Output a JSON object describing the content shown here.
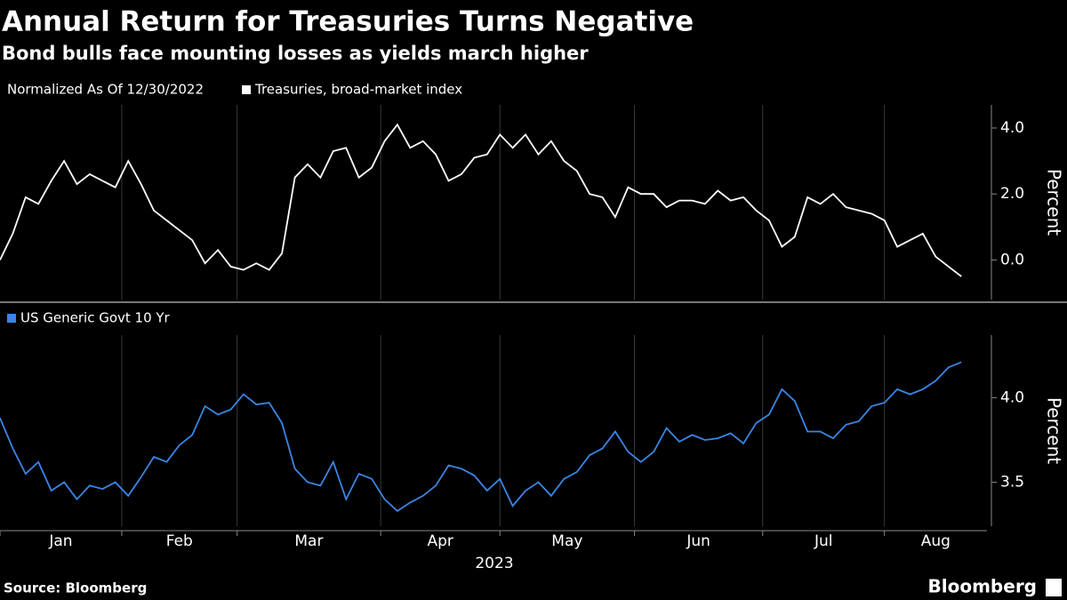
{
  "chart_data": [
    {
      "type": "line",
      "title": "Annual Return for Treasuries Turns Negative",
      "subtitle": "Bond bulls face mounting losses as yields march higher",
      "note": "Normalized As Of 12/30/2022",
      "ylabel": "Percent",
      "ylim": [
        -1.2,
        4.7
      ],
      "yticks": [
        {
          "value": 0,
          "label": "0.0"
        },
        {
          "value": 2,
          "label": "2.0"
        },
        {
          "value": 4,
          "label": "4.0"
        }
      ],
      "xlim": [
        0,
        77
      ],
      "series": [
        {
          "name": "Treasuries, broad-market index",
          "color": "#ffffff",
          "values": [
            0.0,
            0.8,
            1.9,
            1.7,
            2.4,
            3.0,
            2.3,
            2.6,
            2.4,
            2.2,
            3.0,
            2.3,
            1.5,
            1.2,
            0.9,
            0.6,
            -0.1,
            0.3,
            -0.2,
            -0.3,
            -0.1,
            -0.3,
            0.2,
            2.5,
            2.9,
            2.5,
            3.3,
            3.4,
            2.5,
            2.8,
            3.6,
            4.1,
            3.4,
            3.6,
            3.2,
            2.4,
            2.6,
            3.1,
            3.2,
            3.8,
            3.4,
            3.8,
            3.2,
            3.6,
            3.0,
            2.7,
            2.0,
            1.9,
            1.3,
            2.2,
            2.0,
            2.0,
            1.6,
            1.8,
            1.8,
            1.7,
            2.1,
            1.8,
            1.9,
            1.5,
            1.2,
            0.4,
            0.7,
            1.9,
            1.7,
            2.0,
            1.6,
            1.5,
            1.4,
            1.2,
            0.4,
            0.6,
            0.8,
            0.1,
            -0.2,
            -0.5
          ]
        }
      ]
    },
    {
      "type": "line",
      "ylabel": "Percent",
      "xlabel": "2023",
      "ylim": [
        3.24,
        4.37
      ],
      "yticks": [
        {
          "value": 3.5,
          "label": "3.5"
        },
        {
          "value": 4,
          "label": "4.0"
        }
      ],
      "xlim": [
        0,
        77
      ],
      "xticks": [
        {
          "value": 0,
          "label": "Jan"
        },
        {
          "value": 9.5,
          "label": "Feb"
        },
        {
          "value": 18.5,
          "label": "Mar"
        },
        {
          "value": 29.7,
          "label": "Apr"
        },
        {
          "value": 39,
          "label": "May"
        },
        {
          "value": 49.5,
          "label": "Jun"
        },
        {
          "value": 59.5,
          "label": "Jul"
        },
        {
          "value": 69,
          "label": "Aug"
        }
      ],
      "series": [
        {
          "name": "US Generic Govt 10 Yr",
          "color": "#3a86e8",
          "values": [
            3.88,
            3.7,
            3.55,
            3.62,
            3.45,
            3.5,
            3.4,
            3.48,
            3.46,
            3.5,
            3.42,
            3.53,
            3.65,
            3.62,
            3.72,
            3.78,
            3.95,
            3.9,
            3.93,
            4.02,
            3.96,
            3.97,
            3.85,
            3.58,
            3.5,
            3.48,
            3.62,
            3.4,
            3.55,
            3.52,
            3.4,
            3.33,
            3.38,
            3.42,
            3.48,
            3.6,
            3.58,
            3.54,
            3.45,
            3.52,
            3.36,
            3.45,
            3.5,
            3.42,
            3.52,
            3.56,
            3.66,
            3.7,
            3.8,
            3.68,
            3.62,
            3.68,
            3.82,
            3.74,
            3.78,
            3.75,
            3.76,
            3.79,
            3.73,
            3.85,
            3.9,
            4.05,
            3.98,
            3.8,
            3.8,
            3.76,
            3.84,
            3.86,
            3.95,
            3.97,
            4.05,
            4.02,
            4.05,
            4.1,
            4.18,
            4.21
          ]
        }
      ]
    }
  ],
  "source": "Source: Bloomberg",
  "brand": "Bloomberg"
}
